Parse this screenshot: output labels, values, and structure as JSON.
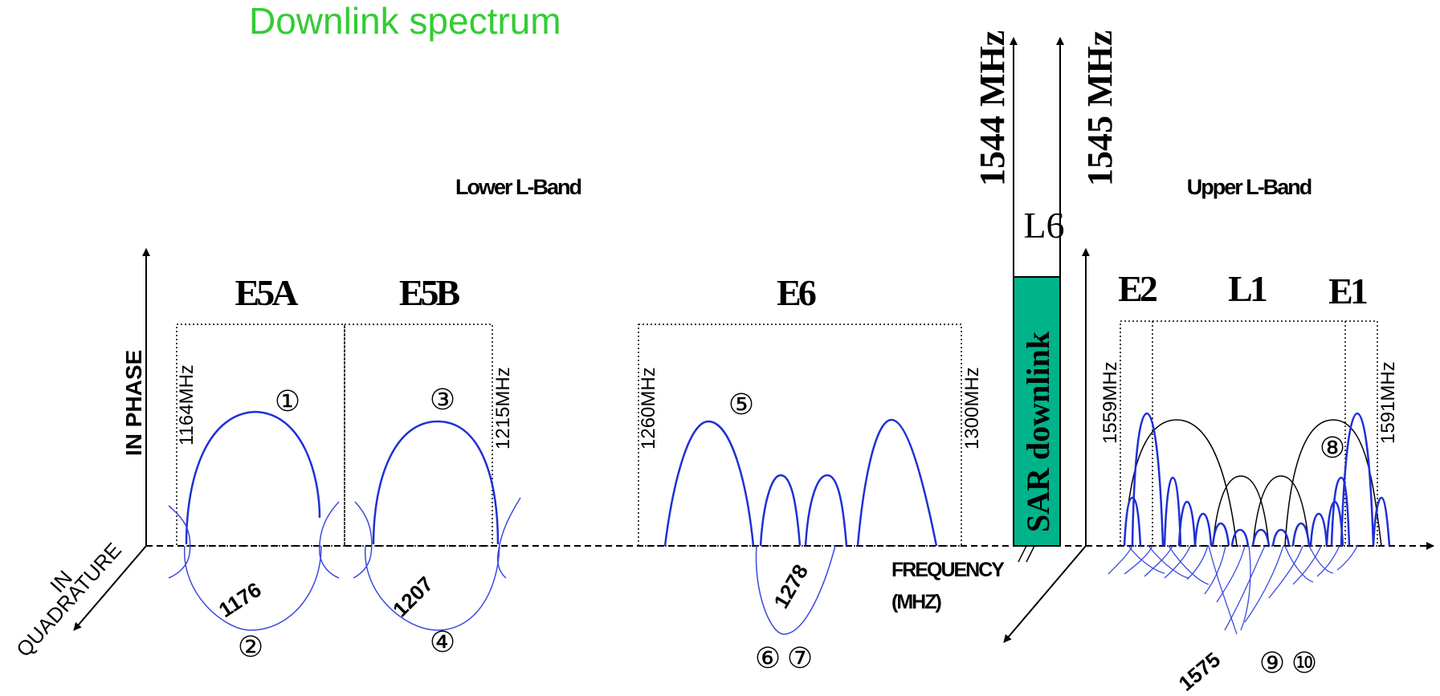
{
  "title": "Downlink spectrum",
  "lower_band_label": "Lower L-Band",
  "upper_band_label": "Upper L-Band",
  "axes": {
    "in_phase": "IN PHASE",
    "in_quadrature_line1": "IN",
    "in_quadrature_line2": "QUADRATURE",
    "frequency_line1": "FREQUENCY",
    "frequency_line2": "(MHZ)"
  },
  "bands": {
    "e5a": "E5A",
    "e5b": "E5B",
    "e6": "E6",
    "l6": "L6",
    "e2": "E2",
    "l1": "L1",
    "e1": "E1"
  },
  "sar": {
    "label": "SAR downlink",
    "freq_low": "1544 MHz",
    "freq_high": "1545 MHz",
    "color": "#00b38a"
  },
  "edge_frequencies": {
    "f1164": "1164MHz",
    "f1215": "1215MHz",
    "f1260": "1260MHz",
    "f1300": "1300MHz",
    "f1559": "1559MHz",
    "f1591": "1591MHz"
  },
  "center_frequencies": {
    "c1176": "1176",
    "c1207": "1207",
    "c1278": "1278",
    "c1575": "1575"
  },
  "signal_markers": {
    "m1": "①",
    "m2": "②",
    "m3": "③",
    "m4": "④",
    "m5": "⑤",
    "m6": "⑥",
    "m7": "⑦",
    "m8": "⑧",
    "m9": "⑨",
    "m10": "⑩"
  },
  "colors": {
    "title": "#33cc33",
    "signal_blue": "#1f2fd6",
    "signal_black": "#000000"
  }
}
